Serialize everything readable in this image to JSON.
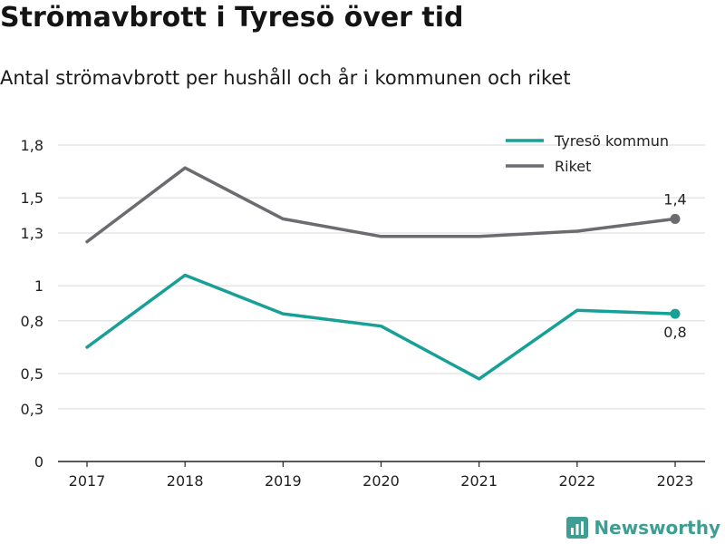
{
  "header": {
    "title": "Strömavbrott i Tyresö över tid",
    "subtitle": "Antal strömavbrott per hushåll och år i kommunen och riket"
  },
  "brand": {
    "name": "Newsworthy",
    "icon": "newsworthy-logo-icon",
    "color": "#3f9e93"
  },
  "chart_data": {
    "type": "line",
    "x": [
      "2017",
      "2018",
      "2019",
      "2020",
      "2021",
      "2022",
      "2023"
    ],
    "ylim": [
      0,
      1.8
    ],
    "yticks": [
      0,
      0.3,
      0.5,
      0.8,
      1,
      1.3,
      1.5,
      1.8
    ],
    "ytick_labels": [
      "0",
      "0,3",
      "0,5",
      "0,8",
      "1",
      "1,3",
      "1,5",
      "1,8"
    ],
    "grid": true,
    "legend_position": "top-right",
    "series": [
      {
        "name": "Tyresö kommun",
        "color": "#16a096",
        "values": [
          0.65,
          1.06,
          0.84,
          0.77,
          0.47,
          0.86,
          0.84
        ],
        "end_label": "0,8",
        "end_label_position": "below"
      },
      {
        "name": "Riket",
        "color": "#6b6b70",
        "values": [
          1.25,
          1.67,
          1.38,
          1.28,
          1.28,
          1.31,
          1.38
        ],
        "end_label": "1,4",
        "end_label_position": "above"
      }
    ]
  }
}
